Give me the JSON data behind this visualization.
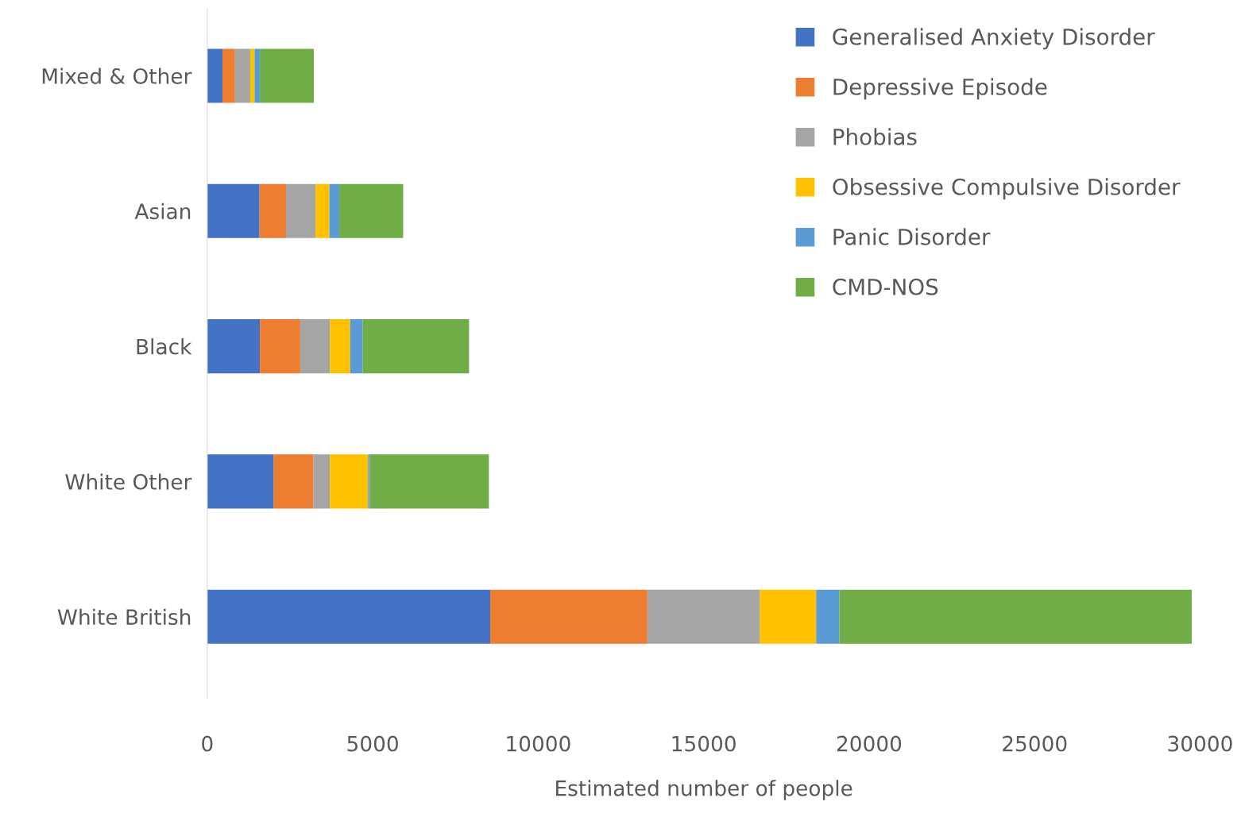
{
  "chart_data": {
    "type": "bar",
    "orientation": "horizontal",
    "stacked": true,
    "categories": [
      "Mixed & Other",
      "Asian",
      "Black",
      "White Other",
      "White British"
    ],
    "series": [
      {
        "name": "Generalised Anxiety Disorder",
        "color": "#4472c4",
        "values": [
          460,
          1580,
          1590,
          2010,
          8550
        ]
      },
      {
        "name": "Depressive Episode",
        "color": "#ed7d31",
        "values": [
          380,
          800,
          1220,
          1200,
          4750
        ]
      },
      {
        "name": "Phobias",
        "color": "#a5a5a5",
        "values": [
          460,
          890,
          900,
          500,
          3400
        ]
      },
      {
        "name": "Obsessive Compulsive Disorder",
        "color": "#ffc000",
        "values": [
          130,
          420,
          610,
          1150,
          1700
        ]
      },
      {
        "name": "Panic Disorder",
        "color": "#5b9bd5",
        "values": [
          160,
          300,
          380,
          50,
          700
        ]
      },
      {
        "name": "CMD-NOS",
        "color": "#70ad47",
        "values": [
          1630,
          1930,
          3210,
          3600,
          10650
        ]
      }
    ],
    "xlabel": "Estimated number of people",
    "xlim": [
      0,
      30000
    ],
    "xticks": [
      0,
      5000,
      10000,
      15000,
      20000,
      25000,
      30000
    ],
    "grid": false,
    "legend": "top right"
  }
}
